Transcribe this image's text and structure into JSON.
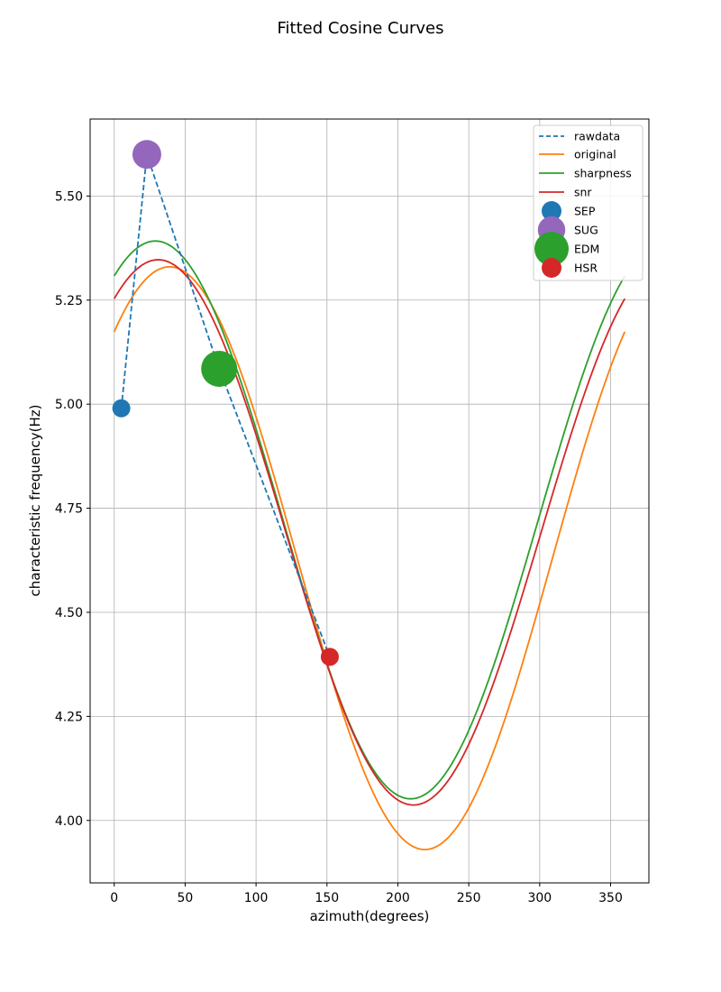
{
  "chart_data": {
    "type": "line",
    "title": "Fitted Cosine Curves",
    "xlabel": "azimuth(degrees)",
    "ylabel": "characteristic frequency(Hz)",
    "xlim": [
      -17,
      377
    ],
    "ylim": [
      3.85,
      5.685
    ],
    "xticks": [
      0,
      50,
      100,
      150,
      200,
      250,
      300,
      350
    ],
    "yticks": [
      4.0,
      4.25,
      4.5,
      4.75,
      5.0,
      5.25,
      5.5
    ],
    "xtick_labels": [
      "0",
      "50",
      "100",
      "150",
      "200",
      "250",
      "300",
      "350"
    ],
    "ytick_labels": [
      "4.00",
      "4.25",
      "4.50",
      "4.75",
      "5.00",
      "5.25",
      "5.50"
    ],
    "grid": true,
    "legend_position": "top-right",
    "raw_series": {
      "name": "rawdata",
      "color": "#1f77b4",
      "style": "dashed",
      "x": [
        5,
        23,
        74,
        152
      ],
      "y": [
        4.99,
        5.6,
        5.085,
        4.393
      ]
    },
    "fitted_series": [
      {
        "name": "original",
        "color": "#ff7f0e",
        "mean": 4.63,
        "amplitude": 0.7,
        "phase_deg": 39
      },
      {
        "name": "sharpness",
        "color": "#2ca02c",
        "mean": 4.722,
        "amplitude": 0.67,
        "phase_deg": 29
      },
      {
        "name": "snr",
        "color": "#d62728",
        "mean": 4.692,
        "amplitude": 0.655,
        "phase_deg": 31
      }
    ],
    "points": [
      {
        "name": "SEP",
        "x": 5,
        "y": 4.99,
        "color": "#1f77b4",
        "size": "small"
      },
      {
        "name": "SUG",
        "x": 23,
        "y": 5.6,
        "color": "#9467bd",
        "size": "medium"
      },
      {
        "name": "EDM",
        "x": 74,
        "y": 5.085,
        "color": "#2ca02c",
        "size": "large"
      },
      {
        "name": "HSR",
        "x": 152,
        "y": 4.393,
        "color": "#d62728",
        "size": "small"
      }
    ]
  }
}
